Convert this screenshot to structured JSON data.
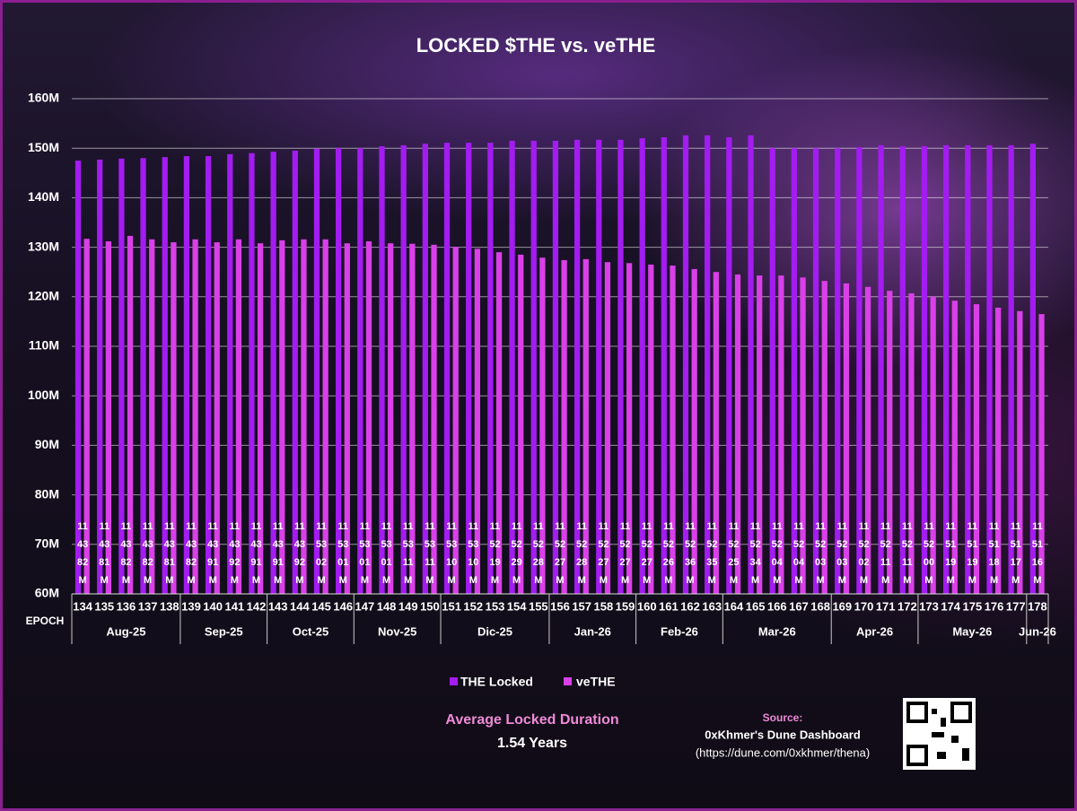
{
  "chart_data": {
    "type": "bar",
    "title": "LOCKED $THE vs. veTHE",
    "x_label": "EPOCH",
    "categories": [
      "134",
      "135",
      "136",
      "137",
      "138",
      "139",
      "140",
      "141",
      "142",
      "143",
      "144",
      "145",
      "146",
      "147",
      "148",
      "149",
      "150",
      "151",
      "152",
      "153",
      "154",
      "155",
      "156",
      "157",
      "158",
      "159",
      "160",
      "161",
      "162",
      "163",
      "164",
      "165",
      "166",
      "167",
      "168",
      "169",
      "170",
      "171",
      "172",
      "173",
      "174",
      "175",
      "176",
      "177",
      "178"
    ],
    "months": [
      "Aug-25",
      "Aug-25",
      "Aug-25",
      "Aug-25",
      "Aug-25",
      "Sep-25",
      "Sep-25",
      "Sep-25",
      "Sep-25",
      "Oct-25",
      "Oct-25",
      "Oct-25",
      "Oct-25",
      "Nov-25",
      "Nov-25",
      "Nov-25",
      "Nov-25",
      "Dic-25",
      "Dic-25",
      "Dic-25",
      "Dic-25",
      "Dic-25",
      "Jan-26",
      "Jan-26",
      "Jan-26",
      "Jan-26",
      "Feb-26",
      "Feb-26",
      "Feb-26",
      "Feb-26",
      "Mar-26",
      "Mar-26",
      "Mar-26",
      "Mar-26",
      "Mar-26",
      "Apr-26",
      "Apr-26",
      "Apr-26",
      "Apr-26",
      "May-26",
      "May-26",
      "May-26",
      "May-26",
      "May-26",
      "Jun-26"
    ],
    "series": [
      {
        "name": "THE Locked",
        "color": "#a31cf0",
        "values": [
          147.5,
          147.7,
          147.9,
          148.0,
          148.2,
          148.4,
          148.4,
          148.8,
          149.0,
          149.3,
          149.5,
          149.9,
          150.0,
          150.0,
          150.4,
          150.6,
          150.9,
          151.1,
          151.1,
          151.1,
          151.5,
          151.5,
          151.5,
          151.7,
          151.7,
          151.7,
          152.0,
          152.2,
          152.6,
          152.6,
          152.2,
          152.6,
          150.0,
          150.0,
          150.0,
          150.0,
          150.2,
          150.6,
          150.4,
          150.4,
          150.6,
          150.6,
          150.6,
          150.6,
          150.9
        ]
      },
      {
        "name": "veTHE",
        "color": "#d940e8",
        "values": [
          131.7,
          131.2,
          132.3,
          131.6,
          131.0,
          131.6,
          131.0,
          131.6,
          130.8,
          131.4,
          131.6,
          131.6,
          130.8,
          131.2,
          130.8,
          130.7,
          130.5,
          130.1,
          129.7,
          129.0,
          128.5,
          127.9,
          127.4,
          127.6,
          127.0,
          126.8,
          126.5,
          126.3,
          125.6,
          125.0,
          124.5,
          124.3,
          124.3,
          123.9,
          123.2,
          122.7,
          122.0,
          121.2,
          120.7,
          120.0,
          119.2,
          118.5,
          117.8,
          117.1,
          116.5
        ]
      }
    ],
    "stack_labels": [
      "114382M",
      "114381M",
      "114382M",
      "114382M",
      "114381M",
      "114382M",
      "114391M",
      "114392M",
      "114391M",
      "114391M",
      "114392M",
      "115302M",
      "115301M",
      "115301M",
      "115301M",
      "115311M",
      "115311M",
      "115310M",
      "115310M",
      "115219M",
      "115229M",
      "115228M",
      "115227M",
      "115228M",
      "115227M",
      "115227M",
      "115227M",
      "115226M",
      "115236M",
      "115235M",
      "115225M",
      "115234M",
      "115204M",
      "115204M",
      "115203M",
      "115203M",
      "115202M",
      "115211M",
      "115211M",
      "115200M",
      "115119M",
      "115119M",
      "115118M",
      "115117M",
      "115116M"
    ],
    "ylim": [
      60,
      160
    ],
    "yticks": [
      {
        "value": 60,
        "label": "60M"
      },
      {
        "value": 70,
        "label": "70M"
      },
      {
        "value": 80,
        "label": "80M"
      },
      {
        "value": 90,
        "label": "90M"
      },
      {
        "value": 100,
        "label": "100M"
      },
      {
        "value": 110,
        "label": "110M"
      },
      {
        "value": 120,
        "label": "120M"
      },
      {
        "value": 130,
        "label": "130M"
      },
      {
        "value": 140,
        "label": "140M"
      },
      {
        "value": 150,
        "label": "150M"
      },
      {
        "value": 160,
        "label": "160M"
      }
    ],
    "grid": true,
    "note_title": "Average Locked Duration",
    "note_value": "1.54 Years",
    "source_title": "Source:",
    "source_name": "0xKhmer's Dune Dashboard",
    "source_url": "(https://dune.com/0xkhmer/thena)"
  }
}
